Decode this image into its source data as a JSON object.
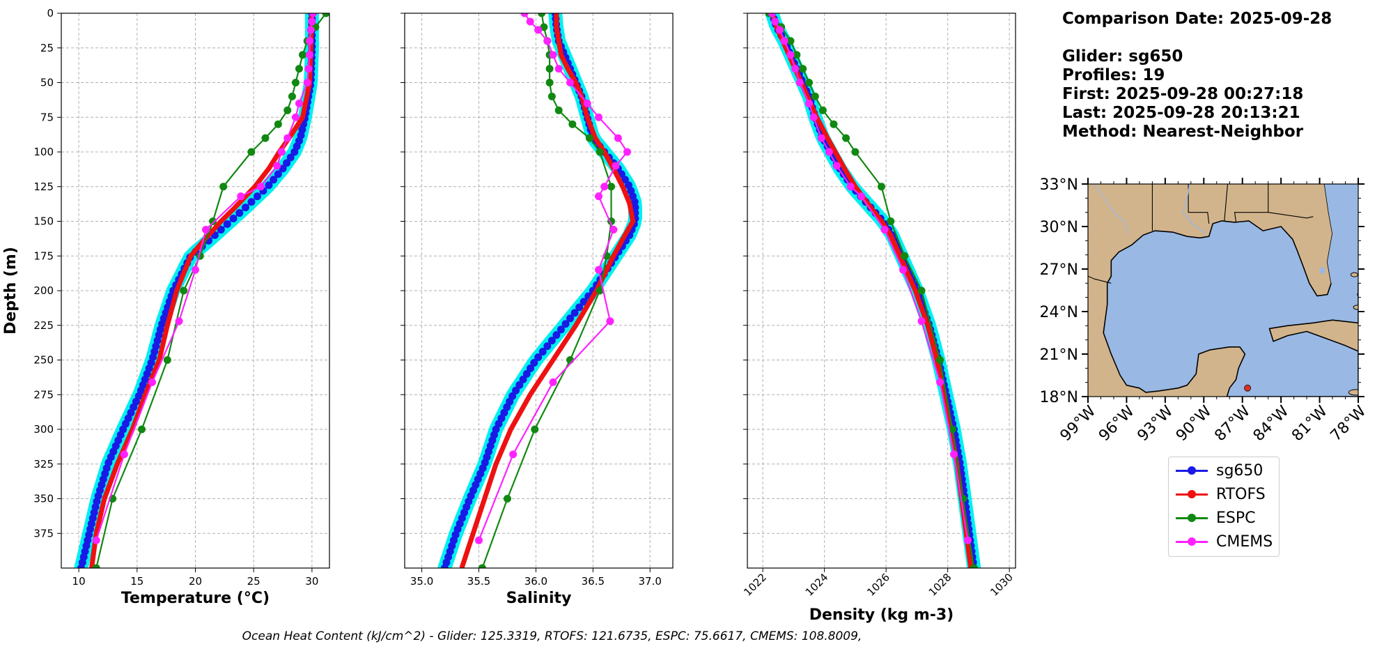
{
  "info": {
    "comparison_date": "Comparison Date: 2025-09-28",
    "glider": "Glider: sg650",
    "profiles": "Profiles: 19",
    "first": "First: 2025-09-28 00:27:18",
    "last": "Last: 2025-09-28 20:13:21",
    "method": "Method: Nearest-Neighbor"
  },
  "footer": "Ocean Heat Content (kJ/cm^2) - Glider: 125.3319,  RTOFS: 121.6735,  ESPC: 75.6617,  CMEMS: 108.8009,",
  "legend": [
    {
      "name": "sg650",
      "color": "#1a1ae6"
    },
    {
      "name": "RTOFS",
      "color": "#ee1111"
    },
    {
      "name": "ESPC",
      "color": "#118811"
    },
    {
      "name": "CMEMS",
      "color": "#ff22ff"
    }
  ],
  "chart_data": [
    {
      "type": "line",
      "xlabel": "Temperature (°C)",
      "ylabel": "Depth (m)",
      "xlim": [
        8.5,
        31.5
      ],
      "ylim": [
        400,
        0
      ],
      "xticks": [
        10,
        15,
        20,
        25,
        30
      ],
      "yticks": [
        0,
        25,
        50,
        75,
        100,
        125,
        150,
        175,
        200,
        225,
        250,
        275,
        300,
        325,
        350,
        375
      ],
      "grid": true,
      "series": [
        {
          "name": "sg650",
          "depth": [
            0,
            25,
            50,
            75,
            90,
            100,
            112,
            125,
            140,
            150,
            165,
            175,
            200,
            225,
            250,
            275,
            300,
            325,
            350,
            375,
            400
          ],
          "values": [
            30,
            30,
            29.9,
            29.4,
            29,
            28.5,
            27.5,
            26.2,
            24.3,
            23,
            21,
            19.6,
            18.1,
            17.1,
            16.3,
            15.2,
            13.8,
            12.5,
            11.6,
            10.9,
            10.2
          ]
        },
        {
          "name": "RTOFS",
          "depth": [
            0,
            25,
            50,
            75,
            88,
            100,
            112,
            125,
            140,
            150,
            165,
            175,
            200,
            225,
            250,
            275,
            300,
            325,
            350,
            375,
            400
          ],
          "values": [
            30,
            29.9,
            29.8,
            29.2,
            28.2,
            27.2,
            26.3,
            25.1,
            23.4,
            22.2,
            20.6,
            19.6,
            18.4,
            17.6,
            16.9,
            15.7,
            14.6,
            13.3,
            12.2,
            11.5,
            11.1
          ]
        },
        {
          "name": "ESPC",
          "depth": [
            0,
            10,
            20,
            30,
            40,
            50,
            60,
            70,
            80,
            90,
            100,
            125,
            150,
            175,
            200,
            250,
            300,
            350,
            400
          ],
          "values": [
            31.2,
            30.3,
            29.6,
            29.2,
            28.9,
            28.6,
            28.3,
            27.9,
            27.1,
            26,
            24.8,
            22.4,
            21.5,
            20.4,
            19,
            17.6,
            15.4,
            12.9,
            11.5
          ]
        },
        {
          "name": "CMEMS",
          "depth": [
            0,
            6,
            12,
            20,
            30,
            40,
            50,
            65,
            75,
            90,
            100,
            110,
            125,
            132,
            156,
            185,
            222,
            266,
            318,
            380
          ],
          "values": [
            30.1,
            30,
            29.9,
            29.8,
            29.8,
            29.7,
            29.6,
            28.9,
            28.6,
            27.9,
            27.4,
            27,
            25.6,
            23.9,
            20.9,
            20,
            18.6,
            16.3,
            13.9,
            11.5
          ]
        }
      ]
    },
    {
      "type": "line",
      "xlabel": "Salinity",
      "ylabel": "",
      "xlim": [
        34.85,
        37.2
      ],
      "ylim": [
        400,
        0
      ],
      "xticks": [
        35.0,
        35.5,
        36.0,
        36.5,
        37.0
      ],
      "grid": true,
      "series": [
        {
          "name": "sg650",
          "depth": [
            0,
            10,
            20,
            30,
            40,
            50,
            60,
            75,
            90,
            100,
            112,
            125,
            137,
            150,
            160,
            175,
            200,
            225,
            250,
            275,
            300,
            325,
            350,
            375,
            400
          ],
          "values": [
            36.17,
            36.18,
            36.2,
            36.25,
            36.3,
            36.35,
            36.4,
            36.45,
            36.5,
            36.6,
            36.72,
            36.82,
            36.87,
            36.87,
            36.82,
            36.7,
            36.5,
            36.25,
            36.0,
            35.8,
            35.65,
            35.55,
            35.42,
            35.3,
            35.2
          ]
        },
        {
          "name": "RTOFS",
          "depth": [
            0,
            10,
            20,
            30,
            40,
            50,
            60,
            75,
            90,
            100,
            112,
            125,
            137,
            150,
            160,
            175,
            200,
            225,
            250,
            275,
            300,
            325,
            350,
            375,
            400
          ],
          "values": [
            36.18,
            36.18,
            36.2,
            36.22,
            36.28,
            36.35,
            36.4,
            36.45,
            36.52,
            36.6,
            36.68,
            36.76,
            36.82,
            36.85,
            36.78,
            36.68,
            36.53,
            36.35,
            36.15,
            35.95,
            35.78,
            35.65,
            35.55,
            35.45,
            35.35
          ]
        },
        {
          "name": "ESPC",
          "depth": [
            0,
            10,
            20,
            30,
            40,
            50,
            60,
            70,
            80,
            90,
            100,
            125,
            150,
            175,
            200,
            250,
            300,
            350,
            400
          ],
          "values": [
            36.05,
            36.07,
            36.1,
            36.12,
            36.12,
            36.12,
            36.14,
            36.2,
            36.32,
            36.47,
            36.56,
            36.66,
            36.66,
            36.62,
            36.56,
            36.3,
            35.99,
            35.75,
            35.53
          ]
        },
        {
          "name": "CMEMS",
          "depth": [
            0,
            6,
            12,
            20,
            30,
            40,
            50,
            65,
            75,
            90,
            100,
            110,
            125,
            132,
            156,
            185,
            222,
            266,
            318,
            380
          ],
          "values": [
            35.9,
            35.95,
            36.02,
            36.1,
            36.15,
            36.2,
            36.3,
            36.45,
            36.55,
            36.72,
            36.8,
            36.7,
            36.6,
            36.55,
            36.68,
            36.55,
            36.65,
            36.15,
            35.8,
            35.5
          ]
        }
      ]
    },
    {
      "type": "line",
      "xlabel": "Density (kg m-3)",
      "ylabel": "",
      "xlim": [
        1021.5,
        1030.2
      ],
      "ylim": [
        400,
        0
      ],
      "xticks": [
        1022,
        1024,
        1026,
        1028,
        1030
      ],
      "grid": true,
      "series": [
        {
          "name": "sg650",
          "depth": [
            0,
            10,
            20,
            30,
            40,
            50,
            60,
            75,
            90,
            100,
            112,
            125,
            140,
            150,
            160,
            175,
            200,
            225,
            250,
            275,
            300,
            325,
            350,
            375,
            400
          ],
          "values": [
            1022.3,
            1022.45,
            1022.7,
            1022.9,
            1023.1,
            1023.3,
            1023.5,
            1023.7,
            1023.95,
            1024.2,
            1024.5,
            1024.9,
            1025.5,
            1025.9,
            1026.2,
            1026.5,
            1027.0,
            1027.4,
            1027.7,
            1027.95,
            1028.2,
            1028.4,
            1028.55,
            1028.7,
            1028.85
          ]
        },
        {
          "name": "RTOFS",
          "depth": [
            0,
            10,
            20,
            30,
            40,
            50,
            60,
            75,
            90,
            100,
            112,
            125,
            140,
            150,
            160,
            175,
            200,
            225,
            250,
            275,
            300,
            325,
            350,
            375,
            400
          ],
          "values": [
            1022.3,
            1022.45,
            1022.65,
            1022.85,
            1023.05,
            1023.25,
            1023.45,
            1023.75,
            1024.1,
            1024.35,
            1024.65,
            1025.0,
            1025.5,
            1025.85,
            1026.15,
            1026.45,
            1026.95,
            1027.35,
            1027.65,
            1027.9,
            1028.1,
            1028.3,
            1028.45,
            1028.6,
            1028.75
          ]
        },
        {
          "name": "ESPC",
          "depth": [
            0,
            10,
            20,
            30,
            40,
            50,
            60,
            70,
            80,
            90,
            100,
            125,
            150,
            175,
            200,
            250,
            300,
            350,
            400
          ],
          "values": [
            1022.2,
            1022.6,
            1022.9,
            1023.1,
            1023.3,
            1023.5,
            1023.7,
            1023.95,
            1024.3,
            1024.7,
            1025.0,
            1025.85,
            1026.15,
            1026.6,
            1027.15,
            1027.75,
            1028.15,
            1028.5,
            1028.85
          ]
        },
        {
          "name": "CMEMS",
          "depth": [
            0,
            6,
            12,
            20,
            30,
            40,
            50,
            65,
            75,
            90,
            100,
            110,
            125,
            132,
            156,
            185,
            222,
            266,
            318,
            380
          ],
          "values": [
            1022.3,
            1022.4,
            1022.55,
            1022.7,
            1022.9,
            1023.05,
            1023.2,
            1023.5,
            1023.65,
            1023.9,
            1024.15,
            1024.4,
            1024.85,
            1025.2,
            1025.95,
            1026.55,
            1027.15,
            1027.75,
            1028.2,
            1028.65
          ]
        }
      ]
    },
    {
      "type": "map",
      "xlabel": "",
      "ylabel": "",
      "lon_ticks": [
        "99°W",
        "96°W",
        "93°W",
        "90°W",
        "87°W",
        "84°W",
        "81°W",
        "78°W"
      ],
      "lat_ticks": [
        "33°N",
        "30°N",
        "27°N",
        "24°N",
        "21°N",
        "18°N"
      ],
      "land_color": "#d2b48c",
      "water_color": "#99b8e3",
      "glider_position": {
        "lon": -86.6,
        "lat": 18.6,
        "color": "#e03020"
      }
    }
  ]
}
